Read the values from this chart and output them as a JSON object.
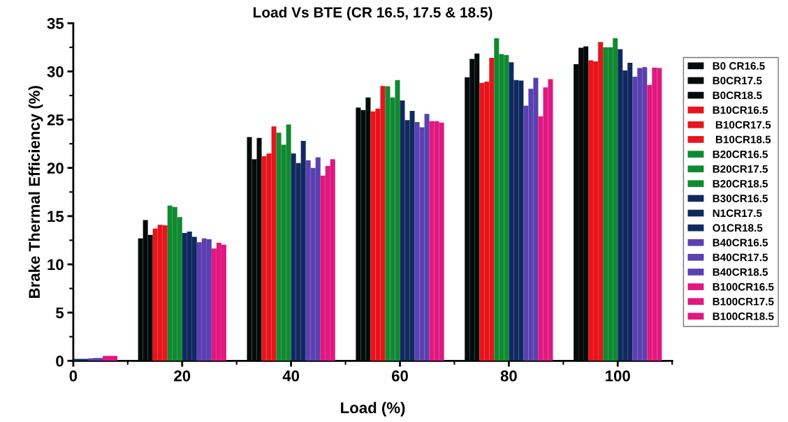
{
  "chart_data": {
    "type": "bar",
    "title": "Load Vs BTE (CR 16.5, 17.5 & 18.5)",
    "xlabel": "Load (%)",
    "ylabel": "Brake Thermal Efficiency (%)",
    "x": [
      0,
      20,
      40,
      60,
      80,
      100
    ],
    "xlim": [
      0,
      110
    ],
    "xticks": [
      0,
      20,
      40,
      60,
      80,
      100
    ],
    "ylim": [
      0,
      35
    ],
    "yticks": [
      0,
      5,
      10,
      15,
      20,
      25,
      30,
      35
    ],
    "grid": false,
    "legend": "right",
    "series": [
      {
        "name": "B0 CR16.5",
        "color": "#050a0a",
        "values": [
          null,
          12.7,
          23.2,
          26.25,
          29.4,
          30.75
        ]
      },
      {
        "name": "B0CR17.5",
        "color": "#050a0a",
        "values": [
          null,
          14.6,
          20.9,
          26.0,
          31.3,
          32.45
        ]
      },
      {
        "name": "B0CR18.5",
        "color": "#050a0a",
        "values": [
          null,
          13.05,
          23.1,
          27.3,
          31.85,
          32.6
        ]
      },
      {
        "name": "B10CR16.5",
        "color": "#e8141c",
        "values": [
          null,
          13.7,
          21.2,
          25.85,
          28.8,
          31.15
        ]
      },
      {
        "name": " B10CR17.5",
        "color": "#e8141c",
        "values": [
          null,
          14.1,
          21.5,
          26.15,
          28.95,
          31.05
        ]
      },
      {
        "name": " B10CR18.5",
        "color": "#e8141c",
        "values": [
          null,
          14.05,
          24.3,
          28.5,
          31.4,
          33.05
        ]
      },
      {
        "name": "B20CR16.5",
        "color": "#108a30",
        "values": [
          null,
          16.1,
          23.65,
          28.45,
          33.45,
          32.5
        ]
      },
      {
        "name": "B20CR17.5",
        "color": "#108a30",
        "values": [
          null,
          15.95,
          22.4,
          27.3,
          31.8,
          32.5
        ]
      },
      {
        "name": "B20CR18.5",
        "color": "#108a30",
        "values": [
          null,
          14.9,
          24.5,
          29.1,
          31.7,
          33.45
        ]
      },
      {
        "name": "B30CR16.5",
        "color": "#102a60",
        "values": [
          0.2,
          13.25,
          21.5,
          27.0,
          30.95,
          32.3
        ]
      },
      {
        "name": "N1CR17.5",
        "color": "#102a60",
        "values": [
          0.2,
          13.4,
          20.5,
          24.95,
          29.1,
          30.1
        ]
      },
      {
        "name": "O1CR18.5",
        "color": "#102a60",
        "values": [
          0.2,
          12.85,
          22.8,
          25.9,
          29.05,
          30.9
        ]
      },
      {
        "name": "B40CR16.5",
        "color": "#5a40b0",
        "values": [
          0.25,
          12.3,
          20.8,
          24.75,
          26.45,
          29.45
        ]
      },
      {
        "name": "B40CR17.5",
        "color": "#5a40b0",
        "values": [
          0.3,
          12.7,
          20.0,
          24.2,
          28.2,
          30.35
        ]
      },
      {
        "name": "B40CR18.5",
        "color": "#5a40b0",
        "values": [
          0.3,
          12.6,
          21.1,
          25.6,
          29.35,
          30.45
        ]
      },
      {
        "name": "B100CR16.5",
        "color": "#e01880",
        "values": [
          0.5,
          11.65,
          19.2,
          24.85,
          25.35,
          28.6
        ]
      },
      {
        "name": "B100CR17.5",
        "color": "#e01880",
        "values": [
          0.5,
          12.25,
          20.2,
          24.85,
          28.35,
          30.4
        ]
      },
      {
        "name": "B100CR18.5",
        "color": "#e01880",
        "values": [
          0.5,
          12.05,
          20.9,
          24.7,
          29.2,
          30.35
        ]
      }
    ]
  }
}
